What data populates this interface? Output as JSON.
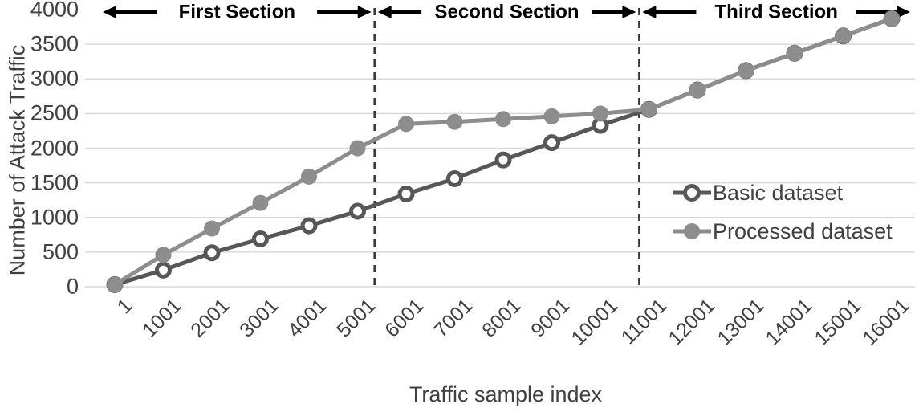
{
  "figure": {
    "y_axis_title": "Number of Attack Traffic",
    "x_axis_title": "Traffic sample index"
  },
  "legend": {
    "items": [
      {
        "label": "Basic dataset",
        "marker": "open-circle",
        "color": "#575757"
      },
      {
        "label": "Processed dataset",
        "marker": "filled-circle",
        "color": "#8d8d8d"
      }
    ]
  },
  "colors": {
    "basic_series": "#575757",
    "processed_series": "#8d8d8d",
    "gridline": "#d9d9d9",
    "divider_line": "#3a3a3a",
    "tick_text": "#404040",
    "section_text": "#000000"
  },
  "chart_data": {
    "type": "line",
    "title": "",
    "xlabel": "Traffic sample index",
    "ylabel": "Number of Attack Traffic",
    "categories": [
      "1",
      "1001",
      "2001",
      "3001",
      "4001",
      "5001",
      "6001",
      "7001",
      "8001",
      "9001",
      "10001",
      "11001",
      "12001",
      "13001",
      "14001",
      "15001",
      "16001"
    ],
    "series": [
      {
        "name": "Basic dataset",
        "marker": "open-circle",
        "color": "#575757",
        "values": [
          30,
          240,
          490,
          690,
          880,
          1090,
          1340,
          1560,
          1830,
          2080,
          2330,
          2560,
          2840,
          3120,
          3370,
          3620,
          3870
        ]
      },
      {
        "name": "Processed dataset",
        "marker": "filled-circle",
        "color": "#8d8d8d",
        "values": [
          30,
          460,
          840,
          1210,
          1590,
          2000,
          2350,
          2380,
          2420,
          2460,
          2500,
          2560,
          2840,
          3120,
          3370,
          3620,
          3870
        ]
      }
    ],
    "ylim": [
      0,
      4000
    ],
    "ytick_step": 500,
    "grid": true,
    "legend_position": "middle-right",
    "annotations": {
      "sections": [
        {
          "label": "First Section"
        },
        {
          "label": "Second Section"
        },
        {
          "label": "Third Section"
        }
      ],
      "dividers_at_category_index": [
        5.35,
        10.8
      ]
    }
  }
}
